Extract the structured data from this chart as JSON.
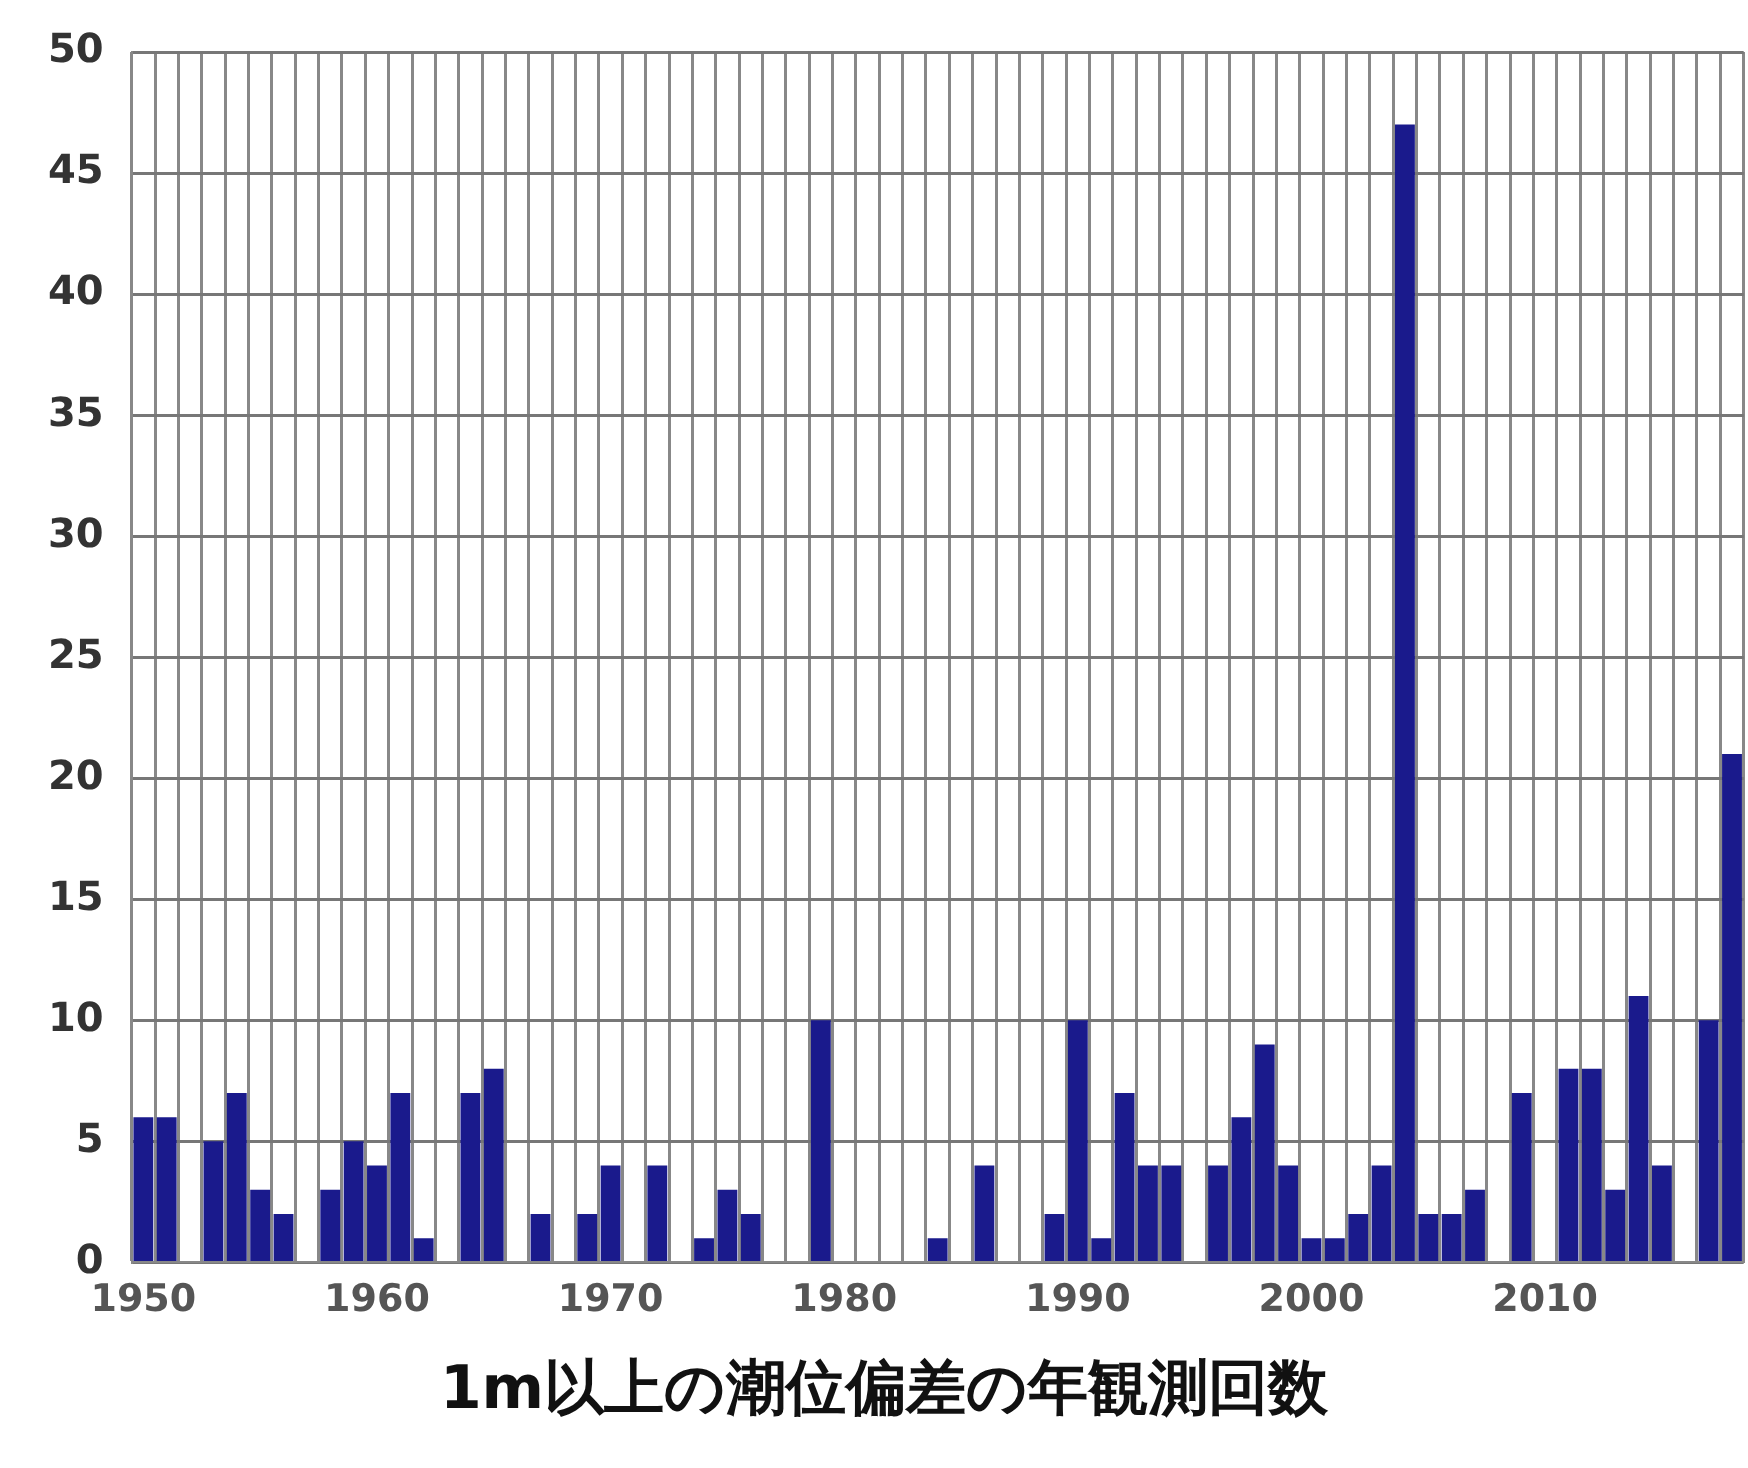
{
  "chart_data": {
    "type": "bar",
    "title": "1m以上の潮位偏差の年観測回数",
    "categories": [
      "1950",
      null,
      null,
      null,
      null,
      null,
      null,
      null,
      null,
      null,
      "1960",
      null,
      null,
      null,
      null,
      null,
      null,
      null,
      null,
      null,
      "1970",
      null,
      null,
      null,
      null,
      null,
      null,
      null,
      null,
      null,
      "1980",
      null,
      null,
      null,
      null,
      null,
      null,
      null,
      null,
      null,
      "1990",
      null,
      null,
      null,
      null,
      null,
      null,
      null,
      null,
      null,
      "2000",
      null,
      null,
      null,
      null,
      null,
      null,
      null,
      null,
      null,
      "2010",
      null,
      null,
      null,
      null,
      null,
      null,
      null,
      null
    ],
    "values": [
      6,
      6,
      0,
      5,
      7,
      3,
      2,
      0,
      3,
      5,
      4,
      7,
      1,
      0,
      7,
      8,
      0,
      2,
      0,
      2,
      4,
      0,
      4,
      0,
      1,
      3,
      2,
      0,
      0,
      10,
      0,
      0,
      0,
      0,
      1,
      0,
      4,
      0,
      0,
      2,
      10,
      1,
      7,
      4,
      4,
      0,
      4,
      6,
      9,
      4,
      1,
      1,
      2,
      4,
      47,
      2,
      2,
      3,
      0,
      7,
      0,
      8,
      8,
      3,
      11,
      4,
      0,
      10,
      21
    ],
    "color": "#1a1a8c",
    "ylim": [
      0,
      50
    ],
    "yticks": [
      0,
      5,
      10,
      15,
      20,
      25,
      30,
      35,
      40,
      45,
      50
    ],
    "grid": true
  }
}
